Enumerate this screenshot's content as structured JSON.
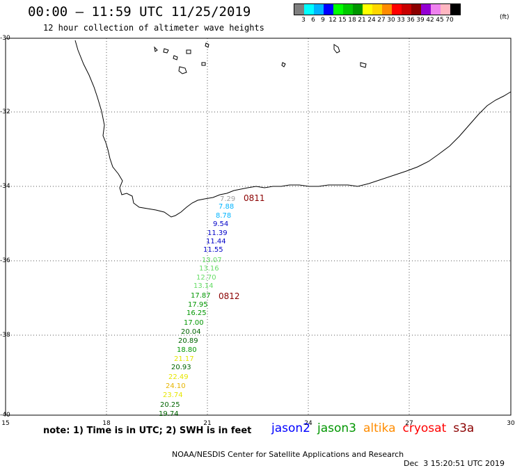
{
  "header": {
    "title": "00:00 – 11:59 UTC 11/25/2019",
    "subtitle": "12 hour collection of altimeter wave heights"
  },
  "legend": {
    "colors": [
      "#7f7f7f",
      "#00ffff",
      "#00b4ff",
      "#0000ff",
      "#00ff00",
      "#00c800",
      "#009600",
      "#ffff00",
      "#ffd700",
      "#ff8c00",
      "#ff0000",
      "#c80000",
      "#8b0000",
      "#9400d3",
      "#ee82ee",
      "#ffb6c1",
      "#000000"
    ],
    "labels": [
      "3",
      "6",
      "9",
      "12",
      "15",
      "18",
      "21",
      "24",
      "27",
      "30",
      "33",
      "36",
      "39",
      "42",
      "45",
      "70"
    ],
    "unit": "(ft)"
  },
  "axes": {
    "lat_labels": [
      "-30",
      "-32",
      "-34",
      "-36",
      "-38",
      "-40"
    ],
    "lon_labels": [
      "15",
      "18",
      "21",
      "24",
      "27",
      "30"
    ]
  },
  "observations": [
    {
      "value": "7.29",
      "color": "#a0a0a0"
    },
    {
      "value": "7.88",
      "color": "#00b4ff"
    },
    {
      "value": "8.78",
      "color": "#00b4ff"
    },
    {
      "value": "9.54",
      "color": "#0000c8"
    },
    {
      "value": "11.39",
      "color": "#0000c8"
    },
    {
      "value": "11.44",
      "color": "#0000c8"
    },
    {
      "value": "11.55",
      "color": "#0000c8"
    },
    {
      "value": "13.07",
      "color": "#66dd66"
    },
    {
      "value": "13.16",
      "color": "#66dd66"
    },
    {
      "value": "12.70",
      "color": "#66dd66"
    },
    {
      "value": "13.14",
      "color": "#66dd66"
    },
    {
      "value": "17.87",
      "color": "#009600"
    },
    {
      "value": "17.95",
      "color": "#009600"
    },
    {
      "value": "16.25",
      "color": "#009600"
    },
    {
      "value": "17.00",
      "color": "#009600"
    },
    {
      "value": "20.04",
      "color": "#006400"
    },
    {
      "value": "20.89",
      "color": "#006400"
    },
    {
      "value": "18.80",
      "color": "#009600"
    },
    {
      "value": "21.17",
      "color": "#e6e600"
    },
    {
      "value": "20.93",
      "color": "#006400"
    },
    {
      "value": "22.49",
      "color": "#e6e600"
    },
    {
      "value": "24.10",
      "color": "#e6b400"
    },
    {
      "value": "23.74",
      "color": "#e6e600"
    },
    {
      "value": "20.25",
      "color": "#006400"
    },
    {
      "value": "19.74",
      "color": "#006400"
    }
  ],
  "pass_labels": [
    "0811",
    "0812"
  ],
  "footer": {
    "note": "note: 1) Time is in UTC; 2) SWH is in feet",
    "satellites": [
      {
        "name": "jason2",
        "color": "#0000ff"
      },
      {
        "name": "jason3",
        "color": "#009600"
      },
      {
        "name": "altika",
        "color": "#ff8c00"
      },
      {
        "name": "cryosat",
        "color": "#ff0000"
      },
      {
        "name": "s3a",
        "color": "#8b0000"
      }
    ],
    "credit": "NOAA/NESDIS Center for Satellite Applications and Research",
    "date": "Dec  3 15:20:51 UTC 2019"
  }
}
